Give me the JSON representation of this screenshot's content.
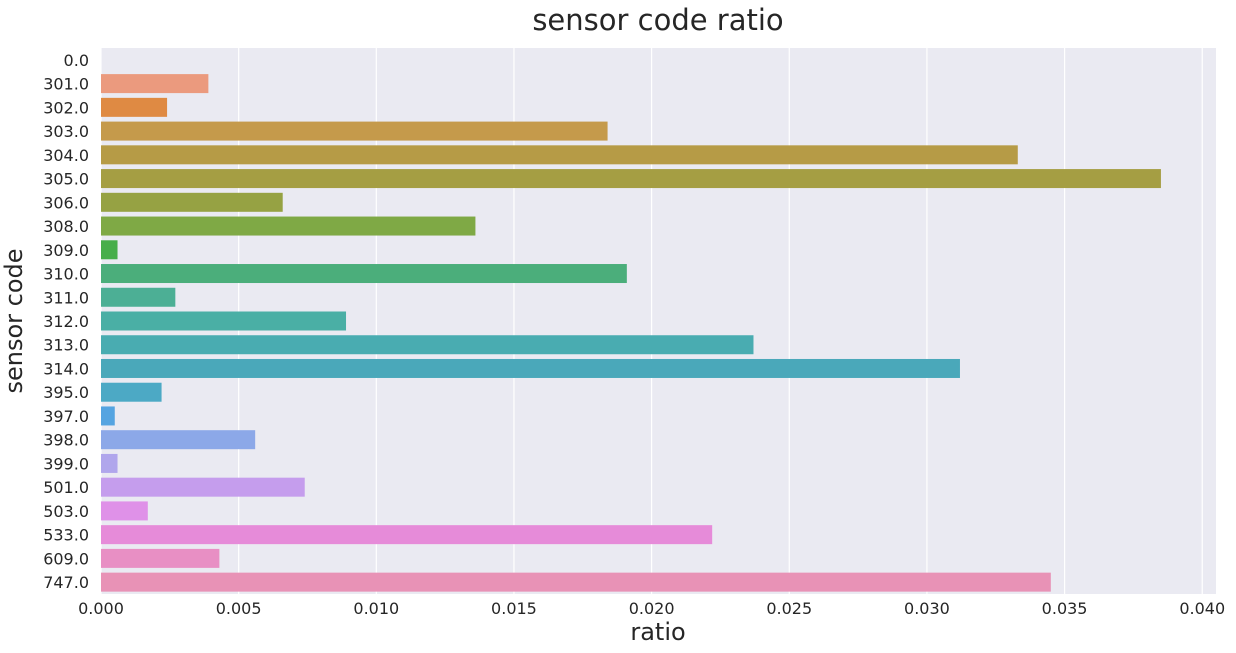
{
  "chart_data": {
    "type": "bar",
    "orientation": "horizontal",
    "title": "sensor code ratio",
    "xlabel": "ratio",
    "ylabel": "sensor code",
    "xlim": [
      0,
      0.0405
    ],
    "xticks": [
      "0.000",
      "0.005",
      "0.010",
      "0.015",
      "0.020",
      "0.025",
      "0.030",
      "0.035",
      "0.040"
    ],
    "grid": true,
    "legend": "none",
    "categories": [
      "0.0",
      "301.0",
      "302.0",
      "303.0",
      "304.0",
      "305.0",
      "306.0",
      "308.0",
      "309.0",
      "310.0",
      "311.0",
      "312.0",
      "313.0",
      "314.0",
      "395.0",
      "397.0",
      "398.0",
      "399.0",
      "501.0",
      "503.0",
      "533.0",
      "609.0",
      "747.0"
    ],
    "values": [
      0.0,
      0.0039,
      0.0024,
      0.0184,
      0.0333,
      0.0385,
      0.0066,
      0.0136,
      0.0006,
      0.0191,
      0.0027,
      0.0089,
      0.0237,
      0.0312,
      0.0022,
      0.0005,
      0.0056,
      0.0006,
      0.0074,
      0.0017,
      0.0222,
      0.0043,
      0.0345
    ],
    "colors": [
      "#e8927c",
      "#eb9a7e",
      "#df8a43",
      "#c59a4b",
      "#b69b46",
      "#a59e43",
      "#96a243",
      "#7fa945",
      "#47ae4a",
      "#4bae7b",
      "#4caf95",
      "#4aafa5",
      "#49acb1",
      "#4aa8ba",
      "#4ca9c5",
      "#55a4e1",
      "#8ca8e8",
      "#b0a6ec",
      "#c59ded",
      "#df91e8",
      "#e68bd9",
      "#e88fc4",
      "#e892b6"
    ]
  }
}
